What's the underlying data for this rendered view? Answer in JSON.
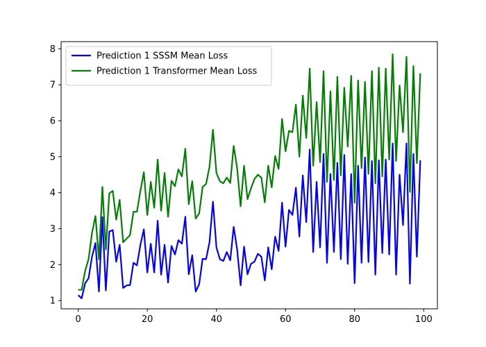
{
  "chart_data": {
    "type": "line",
    "title": "",
    "xlabel": "",
    "ylabel": "",
    "xlim": [
      -4.95,
      103.95
    ],
    "ylim": [
      0.77,
      8.2
    ],
    "x_ticks": [
      0,
      20,
      40,
      60,
      80,
      100
    ],
    "y_ticks": [
      1,
      2,
      3,
      4,
      5,
      6,
      7,
      8
    ],
    "legend_position": "top-left",
    "grid": false,
    "series": [
      {
        "name": "Prediction 1 SSSM Mean Loss",
        "color": "#0000ff",
        "x": [
          0,
          1,
          2,
          3,
          4,
          5,
          6,
          7,
          8,
          9,
          10,
          11,
          12,
          13,
          14,
          15,
          16,
          17,
          18,
          19,
          20,
          21,
          22,
          23,
          24,
          25,
          26,
          27,
          28,
          29,
          30,
          31,
          32,
          33,
          34,
          35,
          36,
          37,
          38,
          39,
          40,
          41,
          42,
          43,
          44,
          45,
          46,
          47,
          48,
          49,
          50,
          51,
          52,
          53,
          54,
          55,
          56,
          57,
          58,
          59,
          60,
          61,
          62,
          63,
          64,
          65,
          66,
          67,
          68,
          69,
          70,
          71,
          72,
          73,
          74,
          75,
          76,
          77,
          78,
          79,
          80,
          81,
          82,
          83,
          84,
          85,
          86,
          87,
          88,
          89,
          90,
          91,
          92,
          93,
          94,
          95,
          96,
          97,
          98,
          99
        ],
        "values": [
          1.15,
          1.06,
          1.48,
          1.62,
          2.22,
          2.6,
          1.25,
          3.32,
          1.28,
          2.92,
          2.96,
          2.08,
          2.55,
          1.35,
          1.42,
          1.43,
          2.05,
          1.98,
          2.55,
          2.98,
          1.78,
          2.58,
          1.78,
          3.22,
          1.72,
          2.55,
          1.5,
          2.52,
          2.28,
          2.68,
          2.58,
          3.33,
          1.73,
          2.26,
          1.25,
          1.45,
          2.16,
          2.15,
          2.62,
          3.75,
          2.48,
          2.15,
          2.1,
          2.35,
          2.12,
          3.05,
          2.42,
          1.42,
          2.5,
          1.73,
          2.02,
          2.08,
          2.3,
          2.22,
          1.56,
          2.48,
          1.87,
          2.78,
          2.38,
          3.72,
          2.5,
          3.52,
          3.38,
          4.14,
          2.78,
          4.48,
          3.18,
          5.2,
          2.35,
          4.3,
          2.48,
          5.08,
          2.05,
          4.52,
          2.35,
          4.83,
          2.15,
          5.05,
          2.02,
          4.52,
          1.48,
          4.75,
          2.05,
          4.98,
          2.07,
          4.88,
          1.72,
          4.9,
          2.32,
          4.92,
          2.28,
          5.37,
          1.72,
          4.5,
          3.1,
          5.37,
          1.47,
          5.08,
          2.22,
          4.9
        ]
      },
      {
        "name": "Prediction 1 Transformer Mean Loss",
        "color": "#008000",
        "x": [
          0,
          1,
          2,
          3,
          4,
          5,
          6,
          7,
          8,
          9,
          10,
          11,
          12,
          13,
          14,
          15,
          16,
          17,
          18,
          19,
          20,
          21,
          22,
          23,
          24,
          25,
          26,
          27,
          28,
          29,
          30,
          31,
          32,
          33,
          34,
          35,
          36,
          37,
          38,
          39,
          40,
          41,
          42,
          43,
          44,
          45,
          46,
          47,
          48,
          49,
          50,
          51,
          52,
          53,
          54,
          55,
          56,
          57,
          58,
          59,
          60,
          61,
          62,
          63,
          64,
          65,
          66,
          67,
          68,
          69,
          70,
          71,
          72,
          73,
          74,
          75,
          76,
          77,
          78,
          79,
          80,
          81,
          82,
          83,
          84,
          85,
          86,
          87,
          88,
          89,
          90,
          91,
          92,
          93,
          94,
          95,
          96,
          97,
          98,
          99
        ],
        "values": [
          1.3,
          1.3,
          1.82,
          2.15,
          2.88,
          3.35,
          2.15,
          4.16,
          2.42,
          3.98,
          4.05,
          3.25,
          3.8,
          2.62,
          2.72,
          2.82,
          3.47,
          3.47,
          4.05,
          4.57,
          3.38,
          4.3,
          3.58,
          4.92,
          3.5,
          4.55,
          3.33,
          4.33,
          4.18,
          4.65,
          4.45,
          5.22,
          3.68,
          4.32,
          3.28,
          3.42,
          4.16,
          4.24,
          4.72,
          5.75,
          4.55,
          4.32,
          4.26,
          4.42,
          4.27,
          5.3,
          4.68,
          3.62,
          4.75,
          3.82,
          4.12,
          4.38,
          4.5,
          4.42,
          3.73,
          4.75,
          4.15,
          5.02,
          4.66,
          6.05,
          5.15,
          5.72,
          5.68,
          6.45,
          5.0,
          6.7,
          5.52,
          7.45,
          4.75,
          6.52,
          4.85,
          7.38,
          4.3,
          6.82,
          4.35,
          7.22,
          4.48,
          6.92,
          5.28,
          7.25,
          3.72,
          7.12,
          4.68,
          7.08,
          4.52,
          7.38,
          4.26,
          7.48,
          4.45,
          7.45,
          4.92,
          7.85,
          4.88,
          6.98,
          5.68,
          7.78,
          4.02,
          7.52,
          4.82,
          7.32
        ]
      }
    ]
  }
}
